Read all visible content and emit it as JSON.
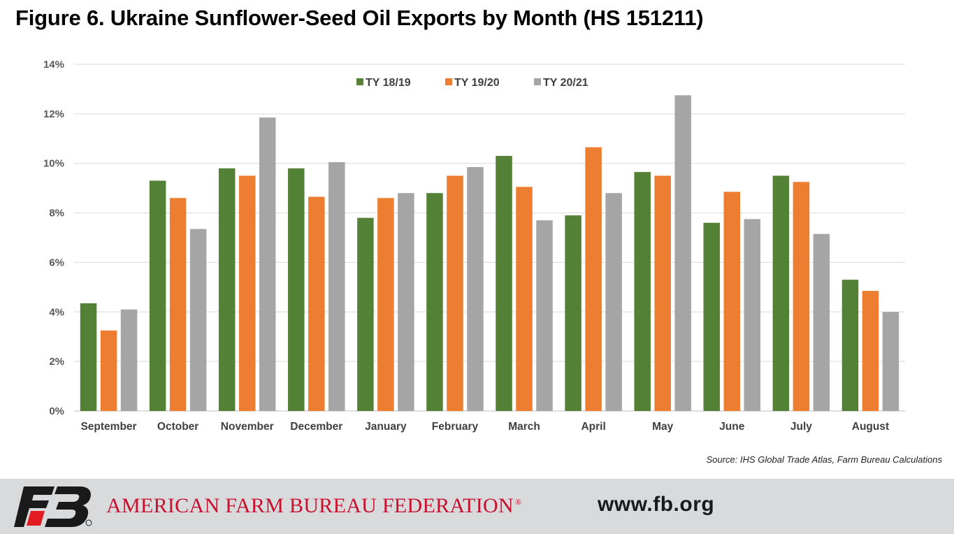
{
  "title": "Figure 6. Ukraine Sunflower-Seed Oil Exports by Month (HS 151211)",
  "source": "Source: IHS Global Trade Atlas, Farm Bureau Calculations",
  "footer": {
    "logo_text": "FB",
    "org_name": "AMERICAN FARM BUREAU FEDERATION",
    "registered_mark": "®",
    "website": "www.fb.org"
  },
  "colors": {
    "series": [
      "#538135",
      "#ed7d31",
      "#a5a5a5"
    ],
    "logo_red": "#e31b23",
    "logo_dark": "#1a1a1a"
  },
  "chart_data": {
    "type": "bar",
    "title": "Figure 6. Ukraine Sunflower-Seed Oil Exports by Month (HS 151211)",
    "xlabel": "",
    "ylabel": "",
    "ylim": [
      0,
      14
    ],
    "yticks": [
      "0%",
      "2%",
      "4%",
      "6%",
      "8%",
      "10%",
      "12%",
      "14%"
    ],
    "grid": true,
    "legend_position": "top-center",
    "categories": [
      "September",
      "October",
      "November",
      "December",
      "January",
      "February",
      "March",
      "April",
      "May",
      "June",
      "July",
      "August"
    ],
    "series": [
      {
        "name": "TY 18/19",
        "values": [
          4.35,
          9.3,
          9.8,
          9.8,
          7.8,
          8.8,
          10.3,
          7.9,
          9.65,
          7.6,
          9.5,
          5.3
        ]
      },
      {
        "name": "TY 19/20",
        "values": [
          3.25,
          8.6,
          9.5,
          8.65,
          8.6,
          9.5,
          9.05,
          10.65,
          9.5,
          8.85,
          9.25,
          4.85
        ]
      },
      {
        "name": "TY 20/21",
        "values": [
          4.1,
          7.35,
          11.85,
          10.05,
          8.8,
          9.85,
          7.7,
          8.8,
          12.75,
          7.75,
          7.15,
          4.0
        ]
      }
    ]
  }
}
